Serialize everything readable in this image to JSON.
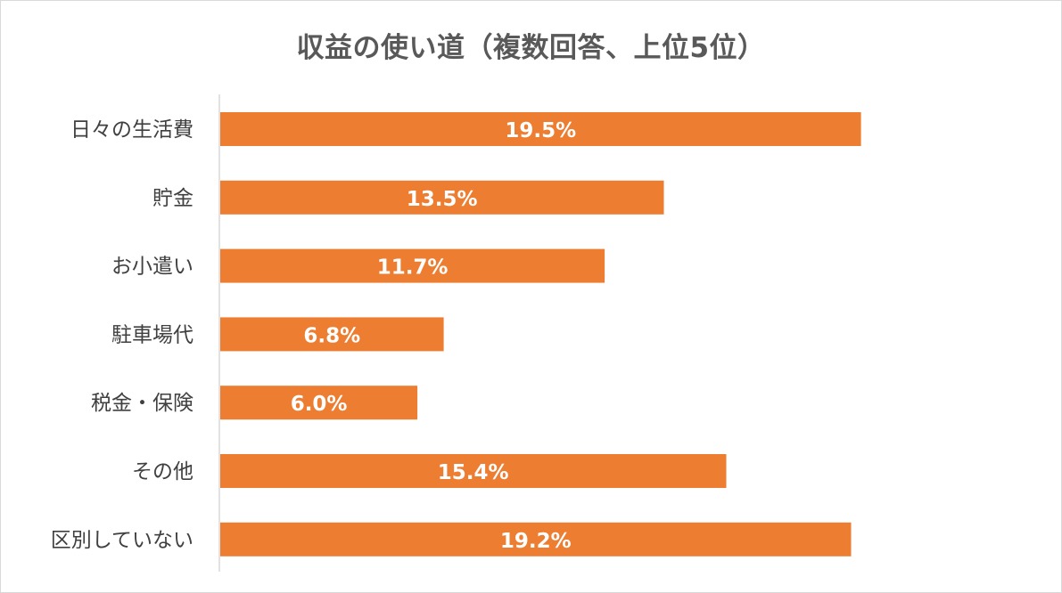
{
  "chart_data": {
    "type": "bar",
    "orientation": "horizontal",
    "title": "収益の使い道（複数回答、上位5位）",
    "categories": [
      "日々の生活費",
      "貯金",
      "お小遣い",
      "駐車場代",
      "税金・保険",
      "その他",
      "区別していない"
    ],
    "values": [
      19.5,
      13.5,
      11.7,
      6.8,
      6.0,
      15.4,
      19.2
    ],
    "data_labels": [
      "19.5%",
      "13.5%",
      "11.7%",
      "6.8%",
      "6.0%",
      "15.4%",
      "19.2%"
    ],
    "unit": "%",
    "xlabel": "",
    "ylabel": "",
    "xlim": [
      0,
      20
    ],
    "grid": false,
    "legend": "none",
    "bar_color": "#ED7D31",
    "axis_color": "#d9d9d9"
  }
}
